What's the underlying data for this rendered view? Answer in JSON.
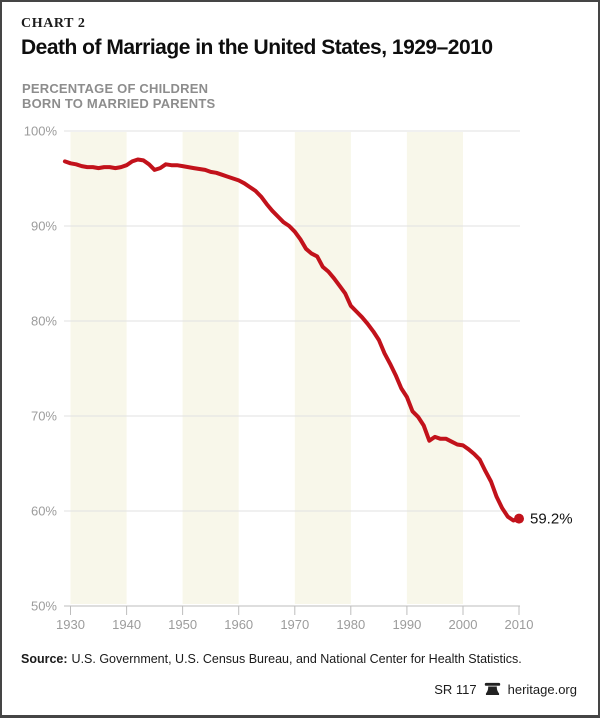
{
  "header": {
    "kicker": "CHART 2",
    "title": "Death of Marriage in the United States, 1929–2010",
    "subtitle_line1": "PERCENTAGE OF CHILDREN",
    "subtitle_line2": "BORN TO MARRIED PARENTS"
  },
  "footer": {
    "source_label": "Source:",
    "source_text": "U.S. Government, U.S. Census Bureau, and National Center for Health Statistics.",
    "report_id": "SR 117",
    "brand": "heritage.org"
  },
  "icons": {
    "footer_logo": "liberty-bell-icon"
  },
  "colors": {
    "line_red": "#c2121b",
    "band_cream": "#f8f7ea",
    "grid_gray": "#e1e1e1",
    "axis_gray": "#bdbdbd",
    "tick_label_gray": "#9c9c9c",
    "frame_border": "#454545"
  },
  "chart_data": {
    "type": "line",
    "title": "Death of Marriage in the United States, 1929–2010",
    "ylabel": "Percentage of children born to married parents",
    "xlabel": "",
    "series_name": "Percentage of children born to married parents",
    "x_start": 1929,
    "x_end": 2010,
    "x_step": 1,
    "values": [
      96.8,
      96.6,
      96.5,
      96.3,
      96.2,
      96.2,
      96.1,
      96.2,
      96.2,
      96.1,
      96.2,
      96.4,
      96.8,
      97.0,
      96.9,
      96.5,
      95.9,
      96.1,
      96.5,
      96.4,
      96.4,
      96.3,
      96.2,
      96.1,
      96.0,
      95.9,
      95.7,
      95.6,
      95.4,
      95.2,
      95.0,
      94.8,
      94.5,
      94.1,
      93.7,
      93.1,
      92.3,
      91.6,
      91.0,
      90.4,
      90.0,
      89.4,
      88.6,
      87.6,
      87.1,
      86.8,
      85.7,
      85.2,
      84.5,
      83.7,
      82.9,
      81.6,
      81.0,
      80.4,
      79.7,
      78.9,
      78.0,
      76.6,
      75.5,
      74.3,
      72.9,
      72.0,
      70.5,
      69.9,
      69.0,
      67.4,
      67.8,
      67.6,
      67.6,
      67.3,
      67.0,
      66.9,
      66.5,
      66.0,
      65.4,
      64.2,
      63.1,
      61.5,
      60.3,
      59.4,
      59.0,
      59.2
    ],
    "end_point": {
      "year": 2010,
      "value": 59.2
    },
    "end_label": "59.2%",
    "x_ticks": [
      1930,
      1940,
      1950,
      1960,
      1970,
      1980,
      1990,
      2000,
      2010
    ],
    "x_tick_labels": [
      "1930",
      "1940",
      "1950",
      "1960",
      "1970",
      "1980",
      "1990",
      "2000",
      "2010"
    ],
    "y_ticks": [
      100,
      90,
      80,
      70,
      60,
      50
    ],
    "y_tick_labels": [
      "100%",
      "90%",
      "80%",
      "70%",
      "60%",
      "50%"
    ],
    "ylim": [
      50,
      100
    ],
    "xlim": [
      1929,
      2010
    ],
    "grid": "horizontal",
    "legend": "none",
    "band_start_decades": [
      1930,
      1950,
      1970,
      1990
    ],
    "colors": {
      "line": "#c2121b",
      "band": "#f8f7ea",
      "grid": "#e1e1e1",
      "axis": "#bdbdbd",
      "tick_label": "#9c9c9c",
      "end_label": "#121212"
    }
  }
}
